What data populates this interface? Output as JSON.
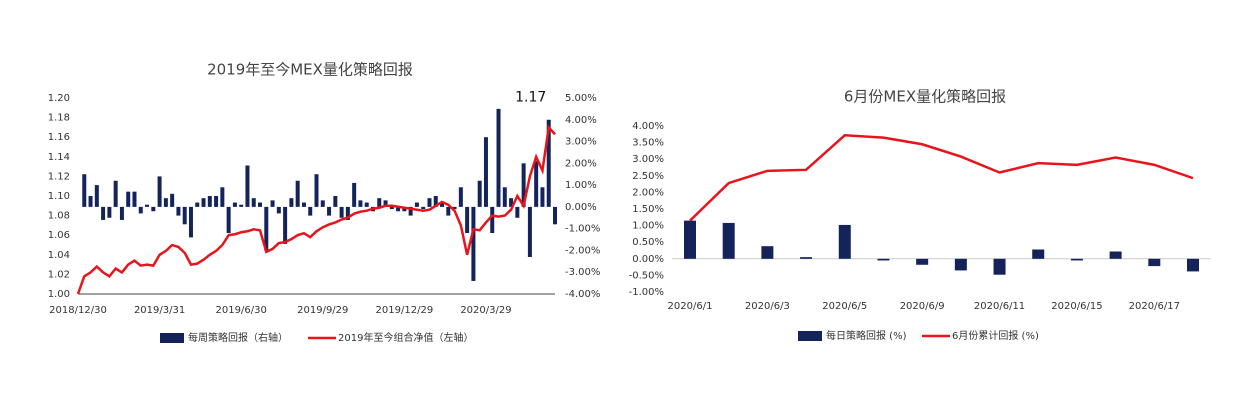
{
  "chart_data": [
    {
      "type": "combo",
      "title": "2019年至今MEX量化策略回报",
      "categories": [
        "2018/12/30",
        null,
        null,
        null,
        null,
        null,
        null,
        null,
        null,
        null,
        null,
        null,
        null,
        "2019/3/31",
        null,
        null,
        null,
        null,
        null,
        null,
        null,
        null,
        null,
        null,
        null,
        null,
        "2019/6/30",
        null,
        null,
        null,
        null,
        null,
        null,
        null,
        null,
        null,
        null,
        null,
        null,
        "2019/9/29",
        null,
        null,
        null,
        null,
        null,
        null,
        null,
        null,
        null,
        null,
        null,
        null,
        "2019/12/29",
        null,
        null,
        null,
        null,
        null,
        null,
        null,
        null,
        null,
        null,
        null,
        null,
        "2020/3/29",
        null,
        null,
        null,
        null,
        null,
        null,
        null,
        null,
        null,
        null,
        null
      ],
      "series": [
        {
          "name": "每周策略回报（右轴）",
          "type": "bar",
          "axis": "y2",
          "color": "#14245a",
          "values": [
            0,
            1.5,
            0.5,
            1.0,
            -0.6,
            -0.5,
            1.2,
            -0.6,
            0.7,
            0.7,
            -0.3,
            0.1,
            -0.2,
            1.4,
            0.4,
            0.6,
            -0.4,
            -0.8,
            -1.4,
            0.2,
            0.4,
            0.5,
            0.5,
            0.9,
            -1.2,
            0.2,
            0.1,
            1.9,
            0.4,
            0.2,
            -2.0,
            0.3,
            -0.3,
            -1.7,
            0.4,
            1.2,
            0.2,
            -0.4,
            1.5,
            0.3,
            -0.4,
            0.5,
            -0.5,
            -0.6,
            1.1,
            0.3,
            0.2,
            -0.2,
            0.4,
            0.3,
            -0.1,
            -0.2,
            -0.2,
            -0.4,
            0.2,
            -0.1,
            0.4,
            0.5,
            0.2,
            -0.4,
            -0.1,
            0.9,
            -1.2,
            -3.4,
            1.2,
            3.2,
            -1.2,
            4.5,
            0.9,
            0.4,
            -0.5,
            2.0,
            -2.3,
            2.1,
            0.9,
            4.0,
            -0.8
          ]
        },
        {
          "name": "2019年至今组合净值（左轴）",
          "type": "line",
          "axis": "y",
          "color": "#e8141b",
          "values": [
            1.0,
            1.018,
            1.022,
            1.028,
            1.022,
            1.018,
            1.026,
            1.022,
            1.03,
            1.034,
            1.029,
            1.03,
            1.029,
            1.04,
            1.044,
            1.05,
            1.048,
            1.042,
            1.03,
            1.031,
            1.035,
            1.04,
            1.044,
            1.05,
            1.06,
            1.061,
            1.063,
            1.064,
            1.066,
            1.065,
            1.043,
            1.046,
            1.052,
            1.053,
            1.056,
            1.06,
            1.062,
            1.058,
            1.064,
            1.068,
            1.071,
            1.073,
            1.076,
            1.078,
            1.082,
            1.084,
            1.085,
            1.087,
            1.088,
            1.09,
            1.09,
            1.089,
            1.088,
            1.087,
            1.086,
            1.085,
            1.086,
            1.09,
            1.094,
            1.091,
            1.085,
            1.07,
            1.04,
            1.066,
            1.065,
            1.073,
            1.08,
            1.079,
            1.08,
            1.086,
            1.1,
            1.09,
            1.12,
            1.14,
            1.126,
            1.17,
            1.163
          ],
          "value_labels": [
            null,
            null,
            null,
            null,
            null,
            null,
            null,
            null,
            null,
            null,
            null,
            null,
            null,
            null,
            null,
            null,
            null,
            null,
            null,
            null,
            null,
            null,
            null,
            null,
            null,
            null,
            null,
            null,
            null,
            null,
            null,
            null,
            null,
            null,
            null,
            null,
            null,
            null,
            null,
            null,
            null,
            null,
            null,
            null,
            null,
            null,
            null,
            null,
            null,
            null,
            null,
            null,
            null,
            null,
            null,
            null,
            null,
            null,
            null,
            null,
            null,
            null,
            null,
            null,
            null,
            null,
            null,
            null,
            null,
            null,
            null,
            null,
            null,
            null,
            null,
            "1.17",
            null
          ]
        }
      ],
      "ylim": [
        1.0,
        1.2
      ],
      "yticks": [
        {
          "value": 1.0,
          "label": "1.00"
        },
        {
          "value": 1.02,
          "label": "1.02"
        },
        {
          "value": 1.04,
          "label": "1.04"
        },
        {
          "value": 1.06,
          "label": "1.06"
        },
        {
          "value": 1.08,
          "label": "1.08"
        },
        {
          "value": 1.1,
          "label": "1.10"
        },
        {
          "value": 1.12,
          "label": "1.12"
        },
        {
          "value": 1.14,
          "label": "1.14"
        },
        {
          "value": 1.16,
          "label": "1.16"
        },
        {
          "value": 1.18,
          "label": "1.18"
        },
        {
          "value": 1.2,
          "label": "1.20"
        }
      ],
      "y2lim": [
        -4,
        5
      ],
      "y2ticks": [
        {
          "value": -4,
          "label": "-4.00%"
        },
        {
          "value": -3,
          "label": "-3.00%"
        },
        {
          "value": -2,
          "label": "-2.00%"
        },
        {
          "value": -1,
          "label": "-1.00%"
        },
        {
          "value": 0,
          "label": "0.00%"
        },
        {
          "value": 1,
          "label": "1.00%"
        },
        {
          "value": 2,
          "label": "2.00%"
        },
        {
          "value": 3,
          "label": "3.00%"
        },
        {
          "value": 4,
          "label": "4.00%"
        },
        {
          "value": 5,
          "label": "5.00%"
        }
      ],
      "legend": "bottom"
    },
    {
      "type": "combo",
      "title": "6月份MEX量化策略回报",
      "categories": [
        "2020/6/1",
        null,
        "2020/6/3",
        null,
        "2020/6/5",
        null,
        "2020/6/9",
        null,
        "2020/6/11",
        null,
        "2020/6/15",
        null,
        "2020/6/17",
        null
      ],
      "series": [
        {
          "name": "每日策略回报 (%)",
          "type": "bar",
          "axis": "y",
          "color": "#14245a",
          "values": [
            1.15,
            1.08,
            0.38,
            0.05,
            1.02,
            -0.05,
            -0.18,
            -0.35,
            -0.48,
            0.28,
            -0.05,
            0.22,
            -0.22,
            -0.38
          ]
        },
        {
          "name": "6月份累计回报 (%)",
          "type": "line",
          "axis": "y",
          "color": "#e8141b",
          "values": [
            1.15,
            2.28,
            2.65,
            2.68,
            3.72,
            3.65,
            3.45,
            3.08,
            2.6,
            2.88,
            2.83,
            3.05,
            2.83,
            2.43
          ]
        }
      ],
      "ylim": [
        -1,
        4
      ],
      "yticks": [
        {
          "value": -1,
          "label": "-1.00%"
        },
        {
          "value": -0.5,
          "label": "-0.50%"
        },
        {
          "value": 0,
          "label": "0.00%"
        },
        {
          "value": 0.5,
          "label": "0.50%"
        },
        {
          "value": 1,
          "label": "1.00%"
        },
        {
          "value": 1.5,
          "label": "1.50%"
        },
        {
          "value": 2,
          "label": "2.00%"
        },
        {
          "value": 2.5,
          "label": "2.50%"
        },
        {
          "value": 3,
          "label": "3.00%"
        },
        {
          "value": 3.5,
          "label": "3.50%"
        },
        {
          "value": 4,
          "label": "4.00%"
        }
      ],
      "legend": "bottom"
    }
  ]
}
